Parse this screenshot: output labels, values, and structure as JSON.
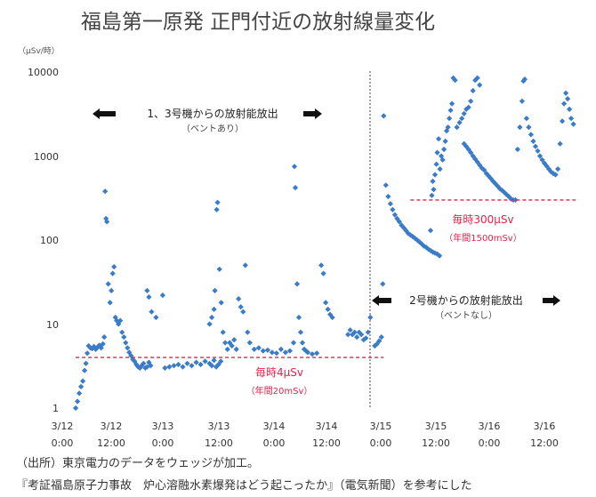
{
  "chart_data": {
    "type": "scatter",
    "title": "福島第一原発 正門付近の放射線量変化",
    "ylabel": "（μSv/時）",
    "yscale": "log",
    "ylim": [
      1,
      10000
    ],
    "y_ticks": [
      "10000",
      "1000",
      "100",
      "10",
      "1"
    ],
    "xlim_hours": [
      0,
      108
    ],
    "x_ticks": [
      {
        "line1": "3/12",
        "line2": "0:00"
      },
      {
        "line1": "3/12",
        "line2": "12:00"
      },
      {
        "line1": "3/13",
        "line2": "0:00"
      },
      {
        "line1": "3/13",
        "line2": "12:00"
      },
      {
        "line1": "3/14",
        "line2": "0:00"
      },
      {
        "line1": "3/14",
        "line2": "12:00"
      },
      {
        "line1": "3/15",
        "line2": "0:00"
      },
      {
        "line1": "3/15",
        "line2": "12:00"
      },
      {
        "line1": "3/16",
        "line2": "0:00"
      },
      {
        "line1": "3/16",
        "line2": "12:00"
      }
    ],
    "vertical_divider_hours": 72,
    "series": [
      {
        "name": "正門付近の放射線量",
        "color": "#3a7cc8",
        "points": [
          [
            3.0,
            1.0
          ],
          [
            3.4,
            1.2
          ],
          [
            3.8,
            1.5
          ],
          [
            4.2,
            1.8
          ],
          [
            4.6,
            2.1
          ],
          [
            5.0,
            2.8
          ],
          [
            5.3,
            3.4
          ],
          [
            5.6,
            4.5
          ],
          [
            5.9,
            5.5
          ],
          [
            6.3,
            5.2
          ],
          [
            6.7,
            5.1
          ],
          [
            7.1,
            5.4
          ],
          [
            7.5,
            5.0
          ],
          [
            7.9,
            5.3
          ],
          [
            8.3,
            5.6
          ],
          [
            8.7,
            5.2
          ],
          [
            9.1,
            5.8
          ],
          [
            9.4,
            7.0
          ],
          [
            9.6,
            380
          ],
          [
            9.8,
            180
          ],
          [
            10.0,
            165
          ],
          [
            10.3,
            30
          ],
          [
            10.7,
            18
          ],
          [
            11.0,
            25
          ],
          [
            11.3,
            40
          ],
          [
            11.6,
            48
          ],
          [
            11.9,
            12
          ],
          [
            12.2,
            11
          ],
          [
            12.6,
            10
          ],
          [
            13.0,
            11
          ],
          [
            13.4,
            8
          ],
          [
            13.8,
            7
          ],
          [
            14.2,
            6
          ],
          [
            14.6,
            5.2
          ],
          [
            15.0,
            4.6
          ],
          [
            15.4,
            4.2
          ],
          [
            15.8,
            3.8
          ],
          [
            16.2,
            3.6
          ],
          [
            16.6,
            3.3
          ],
          [
            17.0,
            3.1
          ],
          [
            17.4,
            3.0
          ],
          [
            17.8,
            3.2
          ],
          [
            18.2,
            3.4
          ],
          [
            18.6,
            3.0
          ],
          [
            19.0,
            3.1
          ],
          [
            19.4,
            3.5
          ],
          [
            19.8,
            3.2
          ],
          [
            19.0,
            25
          ],
          [
            19.4,
            21
          ],
          [
            20.0,
            14
          ],
          [
            21.0,
            12
          ],
          [
            22.5,
            22
          ],
          [
            23.0,
            3.0
          ],
          [
            24.0,
            3.1
          ],
          [
            25.0,
            3.2
          ],
          [
            26.0,
            3.3
          ],
          [
            27.0,
            3.1
          ],
          [
            28.0,
            3.4
          ],
          [
            29.0,
            3.2
          ],
          [
            30.0,
            3.5
          ],
          [
            31.0,
            3.3
          ],
          [
            32.0,
            3.6
          ],
          [
            33.0,
            3.4
          ],
          [
            33.5,
            3.2
          ],
          [
            34.0,
            3.7
          ],
          [
            34.5,
            3.1
          ],
          [
            35.0,
            3.3
          ],
          [
            35.5,
            3.6
          ],
          [
            33.0,
            10
          ],
          [
            33.5,
            12
          ],
          [
            34.0,
            15
          ],
          [
            34.2,
            25
          ],
          [
            34.6,
            230
          ],
          [
            34.8,
            280
          ],
          [
            35.2,
            45
          ],
          [
            35.6,
            18
          ],
          [
            36.0,
            8
          ],
          [
            36.5,
            6
          ],
          [
            37.0,
            5
          ],
          [
            37.5,
            6
          ],
          [
            38.0,
            5.5
          ],
          [
            38.5,
            6.5
          ],
          [
            39.0,
            5.0
          ],
          [
            39.5,
            20
          ],
          [
            40.0,
            16
          ],
          [
            40.5,
            14
          ],
          [
            41.0,
            50
          ],
          [
            41.5,
            8
          ],
          [
            42.0,
            6
          ],
          [
            43.0,
            5.0
          ],
          [
            44.0,
            5.2
          ],
          [
            45.0,
            4.8
          ],
          [
            46.0,
            4.9
          ],
          [
            47.0,
            4.6
          ],
          [
            48.0,
            4.5
          ],
          [
            49.0,
            5.0
          ],
          [
            50.0,
            4.6
          ],
          [
            51.0,
            4.8
          ],
          [
            51.8,
            6
          ],
          [
            52.0,
            750
          ],
          [
            52.2,
            420
          ],
          [
            52.6,
            30
          ],
          [
            53.0,
            12
          ],
          [
            53.4,
            8
          ],
          [
            53.8,
            6
          ],
          [
            54.2,
            5
          ],
          [
            54.6,
            4.8
          ],
          [
            55.0,
            4.6
          ],
          [
            56.0,
            4.4
          ],
          [
            57.0,
            4.5
          ],
          [
            58.0,
            50
          ],
          [
            58.5,
            40
          ],
          [
            59.0,
            18
          ],
          [
            59.5,
            15
          ],
          [
            60.0,
            13
          ],
          [
            60.5,
            12
          ],
          [
            64.0,
            7.5
          ],
          [
            64.5,
            8.5
          ],
          [
            65.0,
            7.5
          ],
          [
            65.5,
            8.0
          ],
          [
            66.0,
            7.0
          ],
          [
            66.5,
            8.0
          ],
          [
            67.0,
            7.5
          ],
          [
            67.5,
            6.5
          ],
          [
            68.0,
            6.8
          ],
          [
            68.5,
            8.0
          ],
          [
            69.0,
            12
          ],
          [
            70.0,
            5.5
          ],
          [
            70.5,
            5.8
          ],
          [
            71.0,
            6.3
          ],
          [
            71.5,
            7.0
          ],
          [
            71.8,
            30
          ],
          [
            72.0,
            3000
          ],
          [
            72.5,
            450
          ],
          [
            73.0,
            330
          ],
          [
            73.5,
            270
          ],
          [
            74.0,
            230
          ],
          [
            74.5,
            200
          ],
          [
            75.0,
            180
          ],
          [
            75.5,
            165
          ],
          [
            76.0,
            150
          ],
          [
            76.5,
            140
          ],
          [
            77.0,
            130
          ],
          [
            77.5,
            120
          ],
          [
            78.0,
            115
          ],
          [
            78.5,
            110
          ],
          [
            79.0,
            105
          ],
          [
            79.5,
            100
          ],
          [
            80.0,
            95
          ],
          [
            80.5,
            90
          ],
          [
            81.0,
            85
          ],
          [
            81.5,
            82
          ],
          [
            82.0,
            78
          ],
          [
            82.5,
            75
          ],
          [
            83.0,
            72
          ],
          [
            83.5,
            70
          ],
          [
            84.0,
            68
          ],
          [
            84.5,
            65
          ],
          [
            82.5,
            130
          ],
          [
            82.8,
            340
          ],
          [
            83.0,
            500
          ],
          [
            83.2,
            400
          ],
          [
            83.5,
            600
          ],
          [
            83.8,
            800
          ],
          [
            84.0,
            1100
          ],
          [
            84.3,
            1600
          ],
          [
            84.6,
            700
          ],
          [
            84.9,
            1000
          ],
          [
            85.2,
            900
          ],
          [
            85.5,
            1200
          ],
          [
            85.8,
            1500
          ],
          [
            86.1,
            2000
          ],
          [
            86.4,
            2200
          ],
          [
            86.7,
            2800
          ],
          [
            87.0,
            3500
          ],
          [
            87.3,
            4200
          ],
          [
            87.6,
            8500
          ],
          [
            88.0,
            8000
          ],
          [
            88.4,
            2200
          ],
          [
            89.0,
            2500
          ],
          [
            89.5,
            2800
          ],
          [
            90.0,
            3200
          ],
          [
            90.5,
            3600
          ],
          [
            91.0,
            3800
          ],
          [
            91.5,
            4500
          ],
          [
            92.0,
            6000
          ],
          [
            92.5,
            8000
          ],
          [
            93.0,
            8500
          ],
          [
            93.5,
            7000
          ],
          [
            90.0,
            1400
          ],
          [
            90.5,
            1300
          ],
          [
            91.0,
            1200
          ],
          [
            91.5,
            1100
          ],
          [
            92.0,
            1000
          ],
          [
            92.5,
            920
          ],
          [
            93.0,
            850
          ],
          [
            93.5,
            780
          ],
          [
            94.0,
            720
          ],
          [
            94.5,
            680
          ],
          [
            95.0,
            620
          ],
          [
            95.5,
            580
          ],
          [
            96.0,
            540
          ],
          [
            96.5,
            500
          ],
          [
            97.0,
            470
          ],
          [
            97.5,
            440
          ],
          [
            98.0,
            410
          ],
          [
            98.5,
            390
          ],
          [
            99.0,
            370
          ],
          [
            99.5,
            350
          ],
          [
            100.0,
            330
          ],
          [
            100.5,
            310
          ],
          [
            101.0,
            300
          ],
          [
            101.5,
            300
          ],
          [
            102.0,
            1200
          ],
          [
            102.5,
            2200
          ],
          [
            103.0,
            4500
          ],
          [
            103.3,
            7800
          ],
          [
            103.6,
            8200
          ],
          [
            104.0,
            2800
          ],
          [
            104.5,
            2200
          ],
          [
            105.0,
            1800
          ],
          [
            105.5,
            1500
          ],
          [
            106.0,
            1300
          ],
          [
            106.5,
            1150
          ],
          [
            107.0,
            1000
          ],
          [
            107.5,
            900
          ],
          [
            108.0,
            820
          ],
          [
            108.5,
            760
          ],
          [
            109.0,
            700
          ],
          [
            109.5,
            650
          ],
          [
            110.0,
            620
          ],
          [
            110.5,
            600
          ],
          [
            111.0,
            700
          ],
          [
            111.5,
            1400
          ],
          [
            112.0,
            2600
          ],
          [
            112.4,
            4200
          ],
          [
            112.8,
            5600
          ],
          [
            113.2,
            4800
          ],
          [
            113.6,
            3600
          ],
          [
            114.0,
            2800
          ],
          [
            114.5,
            2400
          ]
        ]
      }
    ],
    "reference_lines": [
      {
        "label": "毎時4μSv",
        "sublabel": "（年間20mSv）",
        "value": 4,
        "from_hours": 3,
        "to_hours": 72,
        "color": "#e0244a"
      },
      {
        "label": "毎時300μSv",
        "sublabel": "（年間1500mSv）",
        "value": 300,
        "from_hours": 78,
        "to_hours": 115,
        "color": "#e0244a"
      }
    ],
    "annotations": [
      {
        "text": "1、3号機からの放射能放出",
        "subtext": "（ベントあり）",
        "anchor": "left-section-top"
      },
      {
        "text": "2号機からの放射能放出",
        "subtext": "（ベントなし）",
        "anchor": "right-section-middle"
      }
    ]
  },
  "source": {
    "line1": "（出所）東京電力のデータをウェッジが加工。",
    "line2": "『考証福島原子力事故　炉心溶融水素爆発はどう起こったか』（電気新聞）を参考にした"
  }
}
